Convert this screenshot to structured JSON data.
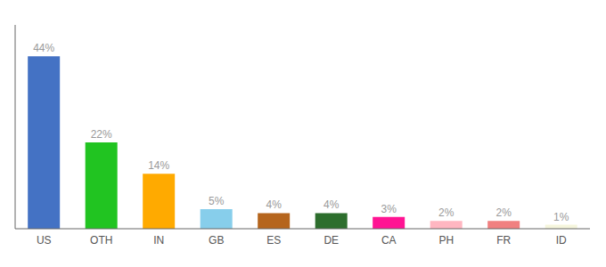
{
  "chart_data": {
    "type": "bar",
    "categories": [
      "US",
      "OTH",
      "IN",
      "GB",
      "ES",
      "DE",
      "CA",
      "PH",
      "FR",
      "ID"
    ],
    "values": [
      44,
      22,
      14,
      5,
      4,
      4,
      3,
      2,
      2,
      1
    ],
    "value_labels": [
      "44%",
      "22%",
      "14%",
      "5%",
      "4%",
      "4%",
      "3%",
      "2%",
      "2%",
      "1%"
    ],
    "data_labels": true,
    "colors": [
      "#4472c4",
      "#21c421",
      "#ffaa00",
      "#87ceeb",
      "#b5651d",
      "#2d6e2d",
      "#ff1493",
      "#ffb6c1",
      "#f08080",
      "#f5f5dc"
    ],
    "ylim": [
      0,
      52
    ],
    "tick_labels": "x",
    "grid": false
  }
}
